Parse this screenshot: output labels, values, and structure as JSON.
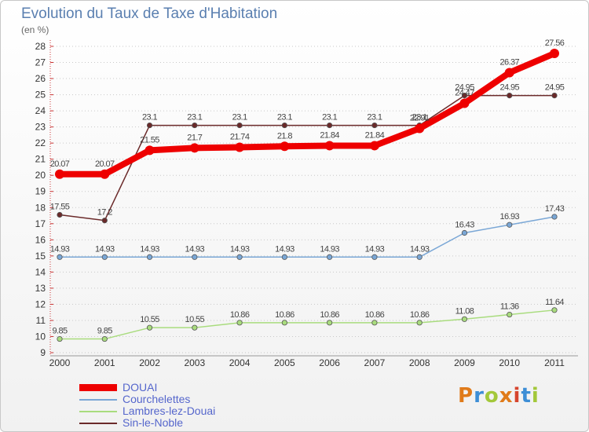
{
  "header": {
    "title": "Evolution du Taux de Taxe d'Habitation",
    "subtitle": "(en %)"
  },
  "brand": {
    "text": "Proxiti",
    "colors": [
      "#e07b1a",
      "#3d8ed6",
      "#a3c83a",
      "#e07b1a",
      "#d6452e",
      "#3d8ed6",
      "#a3c83a"
    ]
  },
  "chart_data": {
    "type": "line",
    "title": "Evolution du Taux de Taxe d'Habitation",
    "subtitle": "(en %)",
    "xlabel": "",
    "ylabel": "",
    "x": [
      "2000",
      "2001",
      "2002",
      "2003",
      "2004",
      "2005",
      "2006",
      "2007",
      "2008",
      "2009",
      "2010",
      "2011"
    ],
    "ylim": [
      9,
      28
    ],
    "yticks": [
      9,
      10,
      11,
      12,
      13,
      14,
      15,
      16,
      17,
      18,
      19,
      20,
      21,
      22,
      23,
      24,
      25,
      26,
      27,
      28
    ],
    "grid": "horizontal dotted",
    "legend_position": "bottom-left",
    "series": [
      {
        "name": "Sin-le-Noble",
        "color": "#6b2a2a",
        "values": [
          17.55,
          17.2,
          23.1,
          23.1,
          23.1,
          23.1,
          23.1,
          23.1,
          23.1,
          24.95,
          24.95,
          24.95
        ],
        "labels": [
          "17.55",
          "17.2",
          "23.1",
          "23.1",
          "23.1",
          "23.1",
          "23.1",
          "23.1",
          "23.1",
          "24.95",
          "24.95",
          "24.95"
        ]
      },
      {
        "name": "Courchelettes",
        "color": "#7aa7d6",
        "values": [
          14.93,
          14.93,
          14.93,
          14.93,
          14.93,
          14.93,
          14.93,
          14.93,
          14.93,
          16.43,
          16.93,
          17.43
        ],
        "labels": [
          "14.93",
          "14.93",
          "14.93",
          "14.93",
          "14.93",
          "14.93",
          "14.93",
          "14.93",
          "14.93",
          "16.43",
          "16.93",
          "17.43"
        ]
      },
      {
        "name": "Lambres-lez-Douai",
        "color": "#a9dc7e",
        "values": [
          9.85,
          9.85,
          10.55,
          10.55,
          10.86,
          10.86,
          10.86,
          10.86,
          10.86,
          11.08,
          11.36,
          11.64
        ],
        "labels": [
          "9.85",
          "9.85",
          "10.55",
          "10.55",
          "10.86",
          "10.86",
          "10.86",
          "10.86",
          "10.86",
          "11.08",
          "11.36",
          "11.64"
        ]
      },
      {
        "name": "DOUAI",
        "color": "#ee0000",
        "values": [
          20.07,
          20.07,
          21.55,
          21.7,
          21.74,
          21.8,
          21.84,
          21.84,
          22.91,
          24.47,
          26.37,
          27.56
        ],
        "labels": [
          "20.07",
          "20.07",
          "21.55",
          "21.7",
          "21.74",
          "21.8",
          "21.84",
          "21.84",
          "22.91",
          "24.47",
          "26.37",
          "27.56"
        ]
      }
    ]
  },
  "legend": {
    "items": [
      {
        "label": "DOUAI",
        "color": "#ee0000"
      },
      {
        "label": "Courchelettes",
        "color": "#7aa7d6"
      },
      {
        "label": "Lambres-lez-Douai",
        "color": "#a9dc7e"
      },
      {
        "label": "Sin-le-Noble",
        "color": "#6b2a2a"
      }
    ]
  }
}
